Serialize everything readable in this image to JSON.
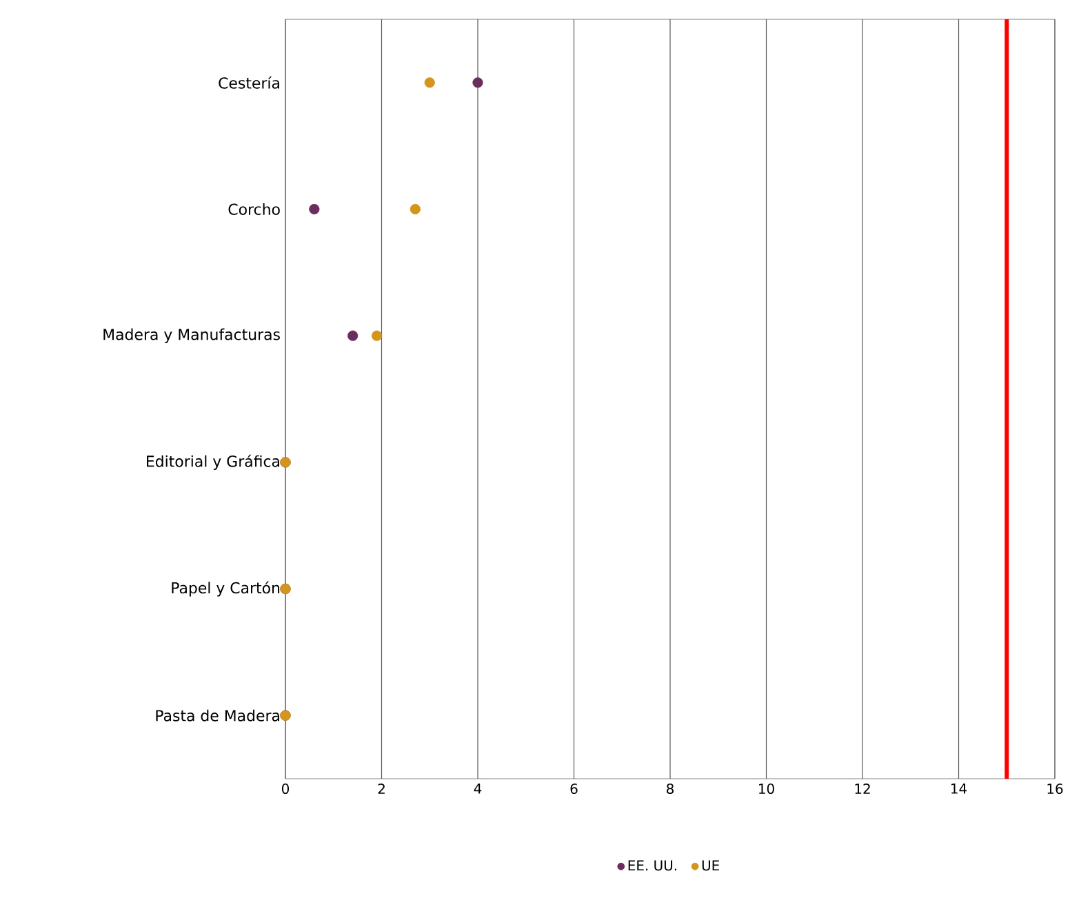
{
  "chart_data": {
    "type": "scatter",
    "orientation": "horizontal",
    "categories": [
      "Cestería",
      "Corcho",
      "Madera y Manufacturas",
      "Editorial y Gráfica",
      "Papel y Cartón",
      "Pasta de Madera"
    ],
    "series": [
      {
        "name": "EE. UU.",
        "color": "#6b2d5c",
        "values": [
          4.0,
          0.6,
          1.4,
          0,
          0,
          0
        ]
      },
      {
        "name": "UE",
        "color": "#d4961a",
        "values": [
          3.0,
          2.7,
          1.9,
          0,
          0,
          0
        ]
      }
    ],
    "xlim": [
      0,
      16
    ],
    "xticks": [
      0,
      2,
      4,
      6,
      8,
      10,
      12,
      14,
      16
    ],
    "ref_lines": [
      {
        "axis": "x",
        "value": 15,
        "color": "#ff0000"
      }
    ],
    "grid": "x",
    "legend": "bottom",
    "marker": "circle"
  }
}
